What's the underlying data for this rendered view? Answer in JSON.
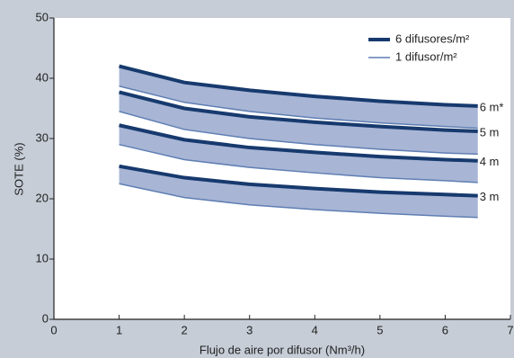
{
  "chart_data": {
    "type": "band",
    "x_label": "Flujo de aire por difusor (Nm³/h)",
    "y_label": "SOTE (%)",
    "xlim": [
      0,
      7
    ],
    "xticks": [
      0,
      1,
      2,
      3,
      4,
      5,
      6,
      7
    ],
    "ylim": [
      0,
      50
    ],
    "yticks": [
      0,
      10,
      20,
      30,
      40,
      50
    ],
    "x": [
      1,
      2,
      3,
      4,
      5,
      6,
      6.5
    ],
    "legend_position": "upper right",
    "fill_color": "#a8b5d5",
    "legend": [
      {
        "name": "6 difusores/m²",
        "color": "#173a6e",
        "width": 4
      },
      {
        "name": "1 difusor/m²",
        "color": "#5f7fb3",
        "width": 1.5
      }
    ],
    "groups": [
      {
        "label": "6 m*",
        "upper": [
          42,
          39.3,
          38,
          37,
          36.2,
          35.6,
          35.4
        ],
        "lower": [
          38.7,
          36,
          34.5,
          33.4,
          32.6,
          32,
          31.7
        ]
      },
      {
        "label": "5 m",
        "upper": [
          37.7,
          35,
          33.6,
          32.7,
          32,
          31.4,
          31.2
        ],
        "lower": [
          34.5,
          31.5,
          30,
          29,
          28.2,
          27.6,
          27.4
        ]
      },
      {
        "label": "4 m",
        "upper": [
          32.2,
          29.8,
          28.5,
          27.7,
          27,
          26.5,
          26.3
        ],
        "lower": [
          29,
          26.5,
          25.2,
          24.3,
          23.5,
          23,
          22.7
        ]
      },
      {
        "label": "3 m",
        "upper": [
          25.4,
          23.5,
          22.4,
          21.7,
          21.1,
          20.7,
          20.5
        ],
        "lower": [
          22.5,
          20.2,
          19,
          18.2,
          17.6,
          17.1,
          16.9
        ]
      }
    ]
  }
}
